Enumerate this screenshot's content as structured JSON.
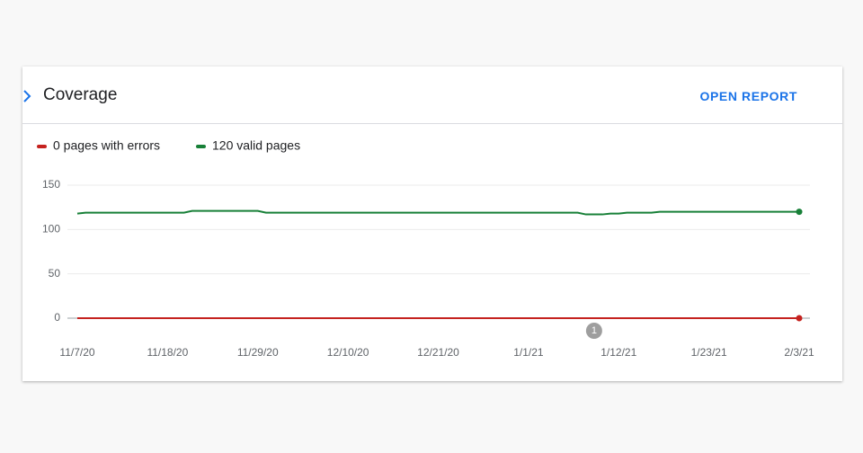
{
  "card": {
    "title": "Coverage",
    "action": "OPEN REPORT"
  },
  "chart_data": {
    "type": "line",
    "series": [
      {
        "name": "0 pages with errors",
        "color": "#c5221f",
        "x": [
          "11/7/20",
          "2/3/21"
        ],
        "values": [
          0,
          0
        ]
      },
      {
        "name": "120 valid pages",
        "color": "#188038",
        "x": [
          "11/7/20",
          "11/8/20",
          "11/20/20",
          "11/21/20",
          "11/29/20",
          "11/30/20",
          "1/7/21",
          "1/8/21",
          "1/10/21",
          "1/11/21",
          "1/12/21",
          "1/13/21",
          "1/16/21",
          "1/17/21",
          "2/3/21"
        ],
        "values": [
          118,
          119,
          119,
          121,
          121,
          119,
          119,
          117,
          117,
          118,
          118,
          119,
          119,
          120,
          120
        ]
      }
    ],
    "xlim": [
      "11/7/20",
      "2/3/21"
    ],
    "xticks": [
      "11/7/20",
      "11/18/20",
      "11/29/20",
      "12/10/20",
      "12/21/20",
      "1/1/21",
      "1/12/21",
      "1/23/21",
      "2/3/21"
    ],
    "ylim": [
      0,
      150
    ],
    "yticks": [
      0,
      50,
      100,
      150
    ],
    "grid": true,
    "annotations": [
      {
        "x": "1/9/21",
        "label": "1"
      }
    ]
  }
}
